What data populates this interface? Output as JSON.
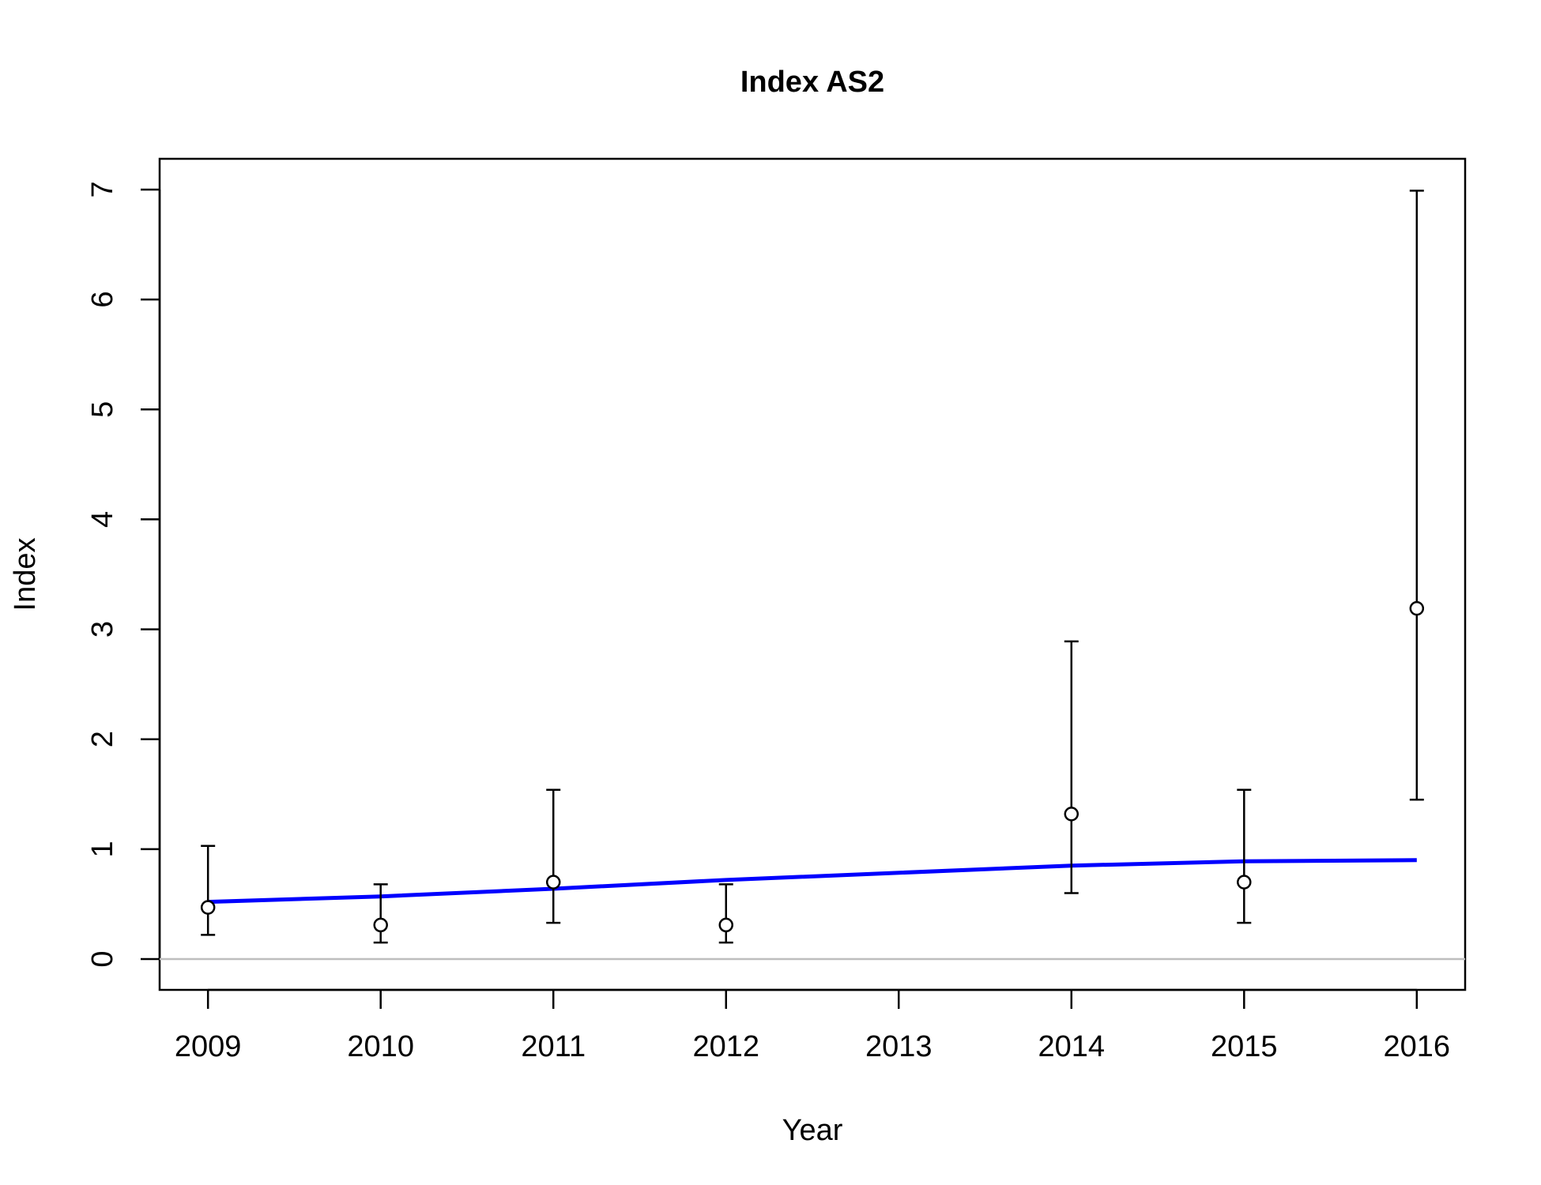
{
  "chart_data": {
    "type": "scatter",
    "title": "Index AS2",
    "xlabel": "Year",
    "ylabel": "Index",
    "xlim": [
      2008.72,
      2016.28
    ],
    "ylim": [
      -0.28,
      7.28
    ],
    "x_ticks": [
      2009,
      2010,
      2011,
      2012,
      2013,
      2014,
      2015,
      2016
    ],
    "y_ticks": [
      0,
      1,
      2,
      3,
      4,
      5,
      6,
      7
    ],
    "grid": false,
    "reference_line": {
      "y": 0,
      "color": "#bebebe"
    },
    "points": {
      "x": [
        2009,
        2010,
        2011,
        2012,
        2014,
        2015,
        2016
      ],
      "y": [
        0.47,
        0.31,
        0.7,
        0.31,
        1.32,
        0.7,
        3.19
      ],
      "lower": [
        0.22,
        0.15,
        0.33,
        0.15,
        0.6,
        0.33,
        1.45
      ],
      "upper": [
        1.03,
        0.68,
        1.54,
        0.68,
        2.89,
        1.54,
        6.99
      ],
      "color": "#000000"
    },
    "fit_line": {
      "x": [
        2009,
        2010,
        2011,
        2012,
        2014,
        2015,
        2016
      ],
      "y": [
        0.52,
        0.57,
        0.64,
        0.72,
        0.85,
        0.89,
        0.9
      ],
      "color": "#0000ff"
    }
  }
}
